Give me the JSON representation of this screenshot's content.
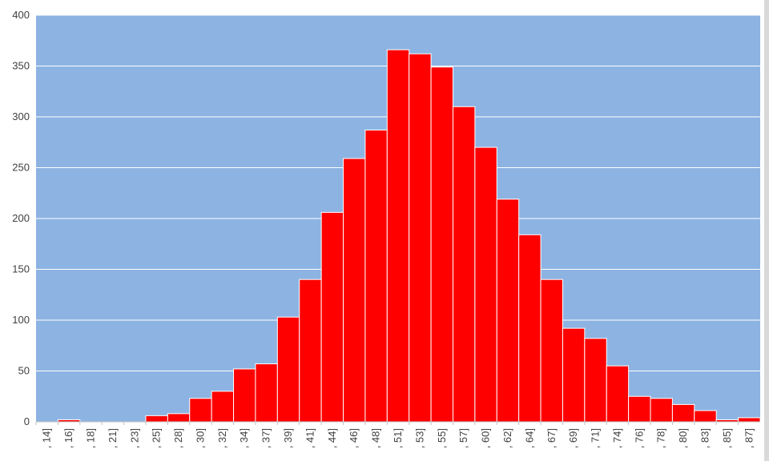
{
  "chart_data": {
    "type": "bar",
    "categories": [
      "14]",
      "16]",
      "18]",
      "21]",
      "23]",
      "25]",
      "28]",
      "30]",
      "32]",
      "34]",
      "37]",
      "39]",
      "41]",
      "44]",
      "46]",
      "48]",
      "51]",
      "53]",
      "55]",
      "57]",
      "60]",
      "62]",
      "64]",
      "67]",
      "69]",
      "71]",
      "74]",
      "76]",
      "78]",
      "80]",
      "83]",
      "85]",
      "87]"
    ],
    "category_prefix": ", ",
    "values": [
      0,
      2,
      0,
      0,
      0,
      6,
      8,
      23,
      30,
      52,
      57,
      103,
      140,
      206,
      259,
      287,
      366,
      362,
      349,
      310,
      270,
      219,
      184,
      140,
      92,
      82,
      55,
      25,
      23,
      17,
      11,
      2,
      4
    ],
    "yticks": [
      0,
      50,
      100,
      150,
      200,
      250,
      300,
      350,
      400
    ],
    "ylim": [
      0,
      400
    ],
    "grid": true,
    "colors": {
      "plot_bg": "#8DB3E2",
      "bar": "#FF0000",
      "bar_edge": "#FFFFFF",
      "grid": "#FFFFFF",
      "axis": "#BFBFBF",
      "text": "#404040"
    }
  }
}
